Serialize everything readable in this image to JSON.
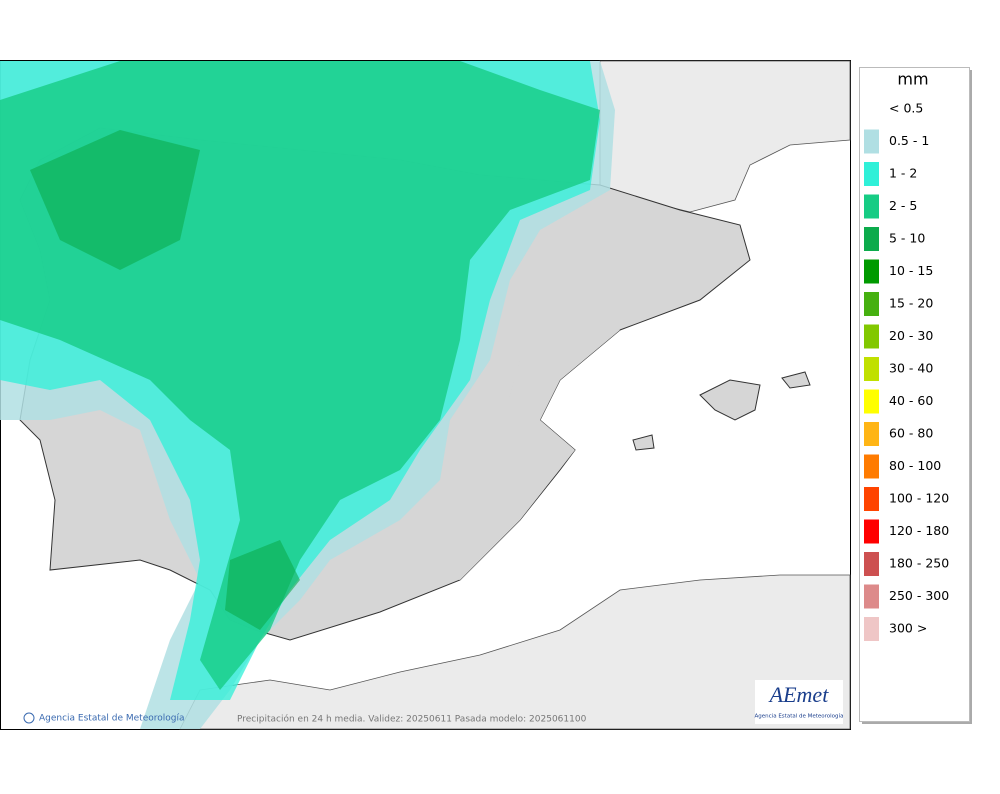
{
  "legend": {
    "title": "mm",
    "items": [
      {
        "label": "< 0.5"
      },
      {
        "label": "0.5 - 1",
        "color": "#b0dfe3"
      },
      {
        "label": "1 - 2",
        "color": "#2ff0d8"
      },
      {
        "label": "2 - 5",
        "color": "#16cc84"
      },
      {
        "label": "5 - 10",
        "color": "#0cab4c"
      },
      {
        "label": "10 - 15",
        "color": "#009a00"
      },
      {
        "label": "15 - 20",
        "color": "#46b010"
      },
      {
        "label": "20 - 30",
        "color": "#82c800"
      },
      {
        "label": "30 - 40",
        "color": "#c0e000"
      },
      {
        "label": "40 - 60",
        "color": "#ffff00"
      },
      {
        "label": "60 - 80",
        "color": "#ffb515"
      },
      {
        "label": "80 - 100",
        "color": "#ff7b00"
      },
      {
        "label": "100 - 120",
        "color": "#ff4400"
      },
      {
        "label": "120 - 180",
        "color": "#ff0000"
      },
      {
        "label": "180 - 250",
        "color": "#cd5050"
      },
      {
        "label": "250 - 300",
        "color": "#dd8a8a"
      },
      {
        "label": "300 >",
        "color": "#efc6c6"
      }
    ]
  },
  "footer": {
    "copyright": "Agencia Estatal de Meteorología",
    "caption": "Precipitación en 24 h media. Validez: 20250611 Pasada modelo: 2025061100"
  },
  "logo": {
    "mark": "AEmet",
    "subtitle": "Agencia Estatal de Meteorología"
  }
}
